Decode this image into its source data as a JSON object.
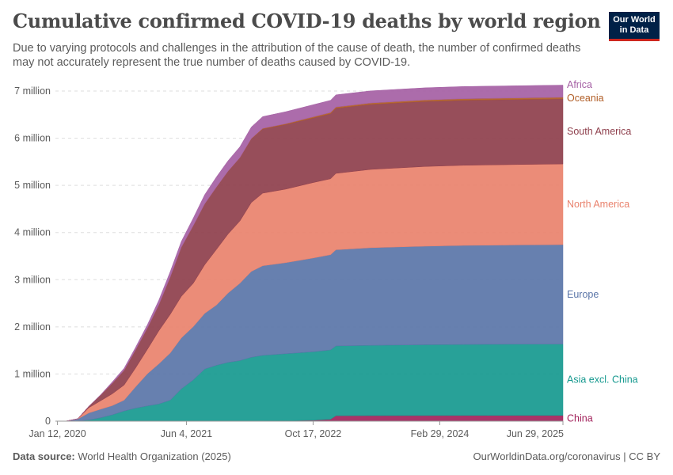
{
  "header": {
    "title": "Cumulative confirmed COVID-19 deaths by world region",
    "subtitle": "Due to varying protocols and challenges in the attribution of the cause of death, the number of confirmed deaths may not accurately represent the true number of deaths caused by COVID-19.",
    "logo_line1": "Our World",
    "logo_line2": "in Data"
  },
  "footer": {
    "source_label": "Data source:",
    "source_value": "World Health Organization (2025)",
    "url": "OurWorldinData.org/coronavirus | CC BY"
  },
  "chart_data": {
    "type": "area",
    "stacked": true,
    "title": "Cumulative confirmed COVID-19 deaths by world region",
    "xlabel": "",
    "ylabel": "",
    "ylim": [
      0,
      7000000
    ],
    "y_ticks": [
      0,
      1000000,
      2000000,
      3000000,
      4000000,
      5000000,
      6000000,
      7000000
    ],
    "y_tick_labels": [
      "0",
      "1 million",
      "2 million",
      "3 million",
      "4 million",
      "5 million",
      "6 million",
      "7 million"
    ],
    "x_range": [
      "2020-01-04",
      "2025-06-29"
    ],
    "x_ticks": [
      "2020-01-12",
      "2021-06-04",
      "2022-10-17",
      "2024-02-29",
      "2025-06-29"
    ],
    "x_tick_labels": [
      "Jan 12, 2020",
      "Jun 4, 2021",
      "Oct 17, 2022",
      "Feb 29, 2024",
      "Jun 29, 2025"
    ],
    "grid": "horizontal-dashed",
    "legend": "right-inline",
    "x": [
      "2020-01-04",
      "2020-02-15",
      "2020-04-01",
      "2020-05-15",
      "2020-07-01",
      "2020-08-15",
      "2020-10-01",
      "2020-11-15",
      "2021-01-01",
      "2021-02-15",
      "2021-04-01",
      "2021-05-15",
      "2021-07-01",
      "2021-08-15",
      "2021-10-01",
      "2021-11-15",
      "2022-01-01",
      "2022-02-15",
      "2022-04-01",
      "2022-07-01",
      "2022-10-17",
      "2022-12-25",
      "2023-01-15",
      "2023-06-01",
      "2024-01-01",
      "2024-06-01",
      "2025-01-01",
      "2025-06-29"
    ],
    "series": [
      {
        "name": "China",
        "color": "#a2225b",
        "values": [
          0,
          2000,
          3300,
          4600,
          4600,
          4700,
          4700,
          4700,
          4800,
          4800,
          4800,
          4800,
          4800,
          4800,
          4800,
          4800,
          4800,
          4800,
          5000,
          10000,
          20000,
          40000,
          115000,
          118000,
          120000,
          121000,
          122000,
          122000
        ]
      },
      {
        "name": "Asia excl. China",
        "color": "#16998f",
        "values": [
          0,
          100,
          2500,
          20000,
          70000,
          130000,
          210000,
          270000,
          320000,
          360000,
          440000,
          680000,
          870000,
          1100000,
          1180000,
          1240000,
          1280000,
          1350000,
          1390000,
          1420000,
          1450000,
          1470000,
          1480000,
          1490000,
          1500000,
          1505000,
          1510000,
          1512000
        ]
      },
      {
        "name": "Europe",
        "color": "#5a75a8",
        "values": [
          0,
          0,
          40000,
          150000,
          180000,
          195000,
          230000,
          450000,
          680000,
          850000,
          1000000,
          1080000,
          1130000,
          1180000,
          1280000,
          1470000,
          1640000,
          1820000,
          1900000,
          1930000,
          1990000,
          2020000,
          2040000,
          2070000,
          2090000,
          2100000,
          2105000,
          2110000
        ]
      },
      {
        "name": "North America",
        "color": "#e9826d",
        "values": [
          0,
          0,
          5000,
          110000,
          180000,
          250000,
          320000,
          400000,
          520000,
          700000,
          820000,
          880000,
          920000,
          1030000,
          1180000,
          1250000,
          1320000,
          1460000,
          1540000,
          1560000,
          1600000,
          1610000,
          1620000,
          1660000,
          1690000,
          1700000,
          1705000,
          1710000
        ]
      },
      {
        "name": "South America",
        "color": "#8e3f4c",
        "values": [
          0,
          0,
          400,
          30000,
          120000,
          220000,
          310000,
          380000,
          450000,
          550000,
          790000,
          1040000,
          1220000,
          1290000,
          1320000,
          1330000,
          1340000,
          1350000,
          1360000,
          1370000,
          1370000,
          1380000,
          1380000,
          1380000,
          1380000,
          1380000,
          1380000,
          1380000
        ]
      },
      {
        "name": "Oceania",
        "color": "#b05d26",
        "values": [
          0,
          0,
          50,
          150,
          180,
          600,
          950,
          1000,
          1000,
          1000,
          1000,
          1000,
          1100,
          1500,
          2500,
          3000,
          4000,
          7000,
          12000,
          17000,
          22000,
          25000,
          26000,
          28000,
          30000,
          31000,
          32000,
          33000
        ]
      },
      {
        "name": "Africa",
        "color": "#a560a4",
        "values": [
          0,
          0,
          400,
          3000,
          10000,
          30000,
          45000,
          55000,
          70000,
          100000,
          115000,
          125000,
          160000,
          195000,
          215000,
          222000,
          230000,
          245000,
          250000,
          255000,
          257000,
          258000,
          258000,
          258000,
          259000,
          259000,
          259000,
          259000
        ]
      }
    ]
  }
}
